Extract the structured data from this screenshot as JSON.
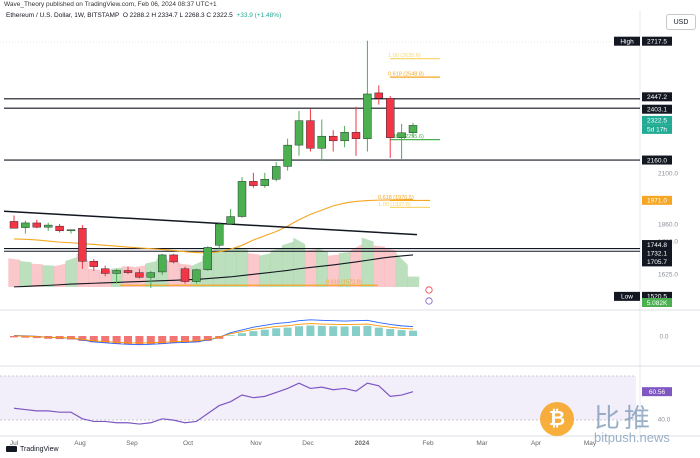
{
  "publisher_line": {
    "text": "Wave_Theory published on TradingView.com, Feb 06, 2024 08:37 UTC+1",
    "icon": "tradingview-icon"
  },
  "symbol_info": {
    "name": "Ethereum / U.S. Dollar, 1W, BITSTAMP",
    "ohlc_line": "O 2288.2  H 2334.7  L 2268.3  C 2322.5",
    "change": "+33.9 (+1.48%)"
  },
  "currency_button": "USD",
  "footer": {
    "logo_text": "TradingView"
  },
  "brand": {
    "cn": "比推",
    "site": "bitpush.news",
    "coin_icon": "bitcoin-icon"
  },
  "colors": {
    "up": "#22ab94",
    "down": "#f23645",
    "candle_up": "#4caf50",
    "ma_orange": "#f5a623",
    "fib_line": "#f5a623",
    "trend_line": "#131722",
    "rsi_line": "#7e57c2",
    "macd_line": "#2962ff"
  },
  "chart_data": [
    {
      "type": "candlestick",
      "x_labels": [
        "Jul",
        "Aug",
        "Sep",
        "Oct",
        "Nov",
        "Dec",
        "2024",
        "Feb",
        "Mar",
        "Apr",
        "May"
      ],
      "y_ticks": [
        1520.5,
        1625.0,
        1705.7,
        1780.0,
        1860.0,
        1971.0,
        2100.0,
        2160.0,
        2322.5,
        2403.1,
        2447.2,
        2717.5
      ],
      "price_labels": [
        {
          "text": "High",
          "value": "2717.5",
          "style": "dark"
        },
        {
          "text": "",
          "value": "2447.2",
          "style": "dark"
        },
        {
          "text": "",
          "value": "2403.1",
          "style": "dark"
        },
        {
          "text": "",
          "value": "2322.5",
          "style": "green"
        },
        {
          "text": "",
          "value": "5d 17h",
          "style": "green"
        },
        {
          "text": "",
          "value": "2160.0",
          "style": "dark"
        },
        {
          "text": "",
          "value": "1971.0",
          "style": "orange"
        },
        {
          "text": "",
          "value": "1744.8",
          "style": "dark"
        },
        {
          "text": "",
          "value": "1732.1",
          "style": "dark"
        },
        {
          "text": "",
          "value": "1705.7",
          "style": "dark"
        },
        {
          "text": "Low",
          "value": "1520.5",
          "style": "dark"
        }
      ],
      "axis_ticks": [
        {
          "value": "2100.0"
        },
        {
          "value": "1860.0"
        },
        {
          "value": "1780.0"
        },
        {
          "value": "1625.0"
        }
      ],
      "candles": [
        {
          "o": 1872,
          "h": 1900,
          "l": 1840,
          "c": 1840
        },
        {
          "o": 1843,
          "h": 1875,
          "l": 1815,
          "c": 1865
        },
        {
          "o": 1865,
          "h": 1880,
          "l": 1840,
          "c": 1845
        },
        {
          "o": 1845,
          "h": 1866,
          "l": 1828,
          "c": 1855
        },
        {
          "o": 1850,
          "h": 1860,
          "l": 1820,
          "c": 1828
        },
        {
          "o": 1828,
          "h": 1835,
          "l": 1815,
          "c": 1833
        },
        {
          "o": 1840,
          "h": 1855,
          "l": 1650,
          "c": 1685
        },
        {
          "o": 1685,
          "h": 1695,
          "l": 1640,
          "c": 1660
        },
        {
          "o": 1650,
          "h": 1665,
          "l": 1615,
          "c": 1628
        },
        {
          "o": 1628,
          "h": 1650,
          "l": 1580,
          "c": 1642
        },
        {
          "o": 1642,
          "h": 1660,
          "l": 1625,
          "c": 1632
        },
        {
          "o": 1632,
          "h": 1650,
          "l": 1605,
          "c": 1610
        },
        {
          "o": 1610,
          "h": 1640,
          "l": 1560,
          "c": 1632
        },
        {
          "o": 1635,
          "h": 1720,
          "l": 1620,
          "c": 1715
        },
        {
          "o": 1715,
          "h": 1720,
          "l": 1675,
          "c": 1682
        },
        {
          "o": 1650,
          "h": 1660,
          "l": 1580,
          "c": 1590
        },
        {
          "o": 1590,
          "h": 1650,
          "l": 1580,
          "c": 1645
        },
        {
          "o": 1645,
          "h": 1755,
          "l": 1640,
          "c": 1750
        },
        {
          "o": 1760,
          "h": 1870,
          "l": 1745,
          "c": 1860
        },
        {
          "o": 1860,
          "h": 1930,
          "l": 1855,
          "c": 1895
        },
        {
          "o": 1895,
          "h": 2080,
          "l": 1890,
          "c": 2060
        },
        {
          "o": 2060,
          "h": 2100,
          "l": 2030,
          "c": 2040
        },
        {
          "o": 2040,
          "h": 2100,
          "l": 2030,
          "c": 2070
        },
        {
          "o": 2070,
          "h": 2150,
          "l": 2060,
          "c": 2130
        },
        {
          "o": 2130,
          "h": 2260,
          "l": 2110,
          "c": 2230
        },
        {
          "o": 2230,
          "h": 2390,
          "l": 2180,
          "c": 2345
        },
        {
          "o": 2345,
          "h": 2400,
          "l": 2200,
          "c": 2215
        },
        {
          "o": 2215,
          "h": 2350,
          "l": 2155,
          "c": 2272
        },
        {
          "o": 2272,
          "h": 2300,
          "l": 2200,
          "c": 2250
        },
        {
          "o": 2250,
          "h": 2320,
          "l": 2220,
          "c": 2290
        },
        {
          "o": 2290,
          "h": 2410,
          "l": 2180,
          "c": 2260
        },
        {
          "o": 2260,
          "h": 2720,
          "l": 2200,
          "c": 2470
        },
        {
          "o": 2475,
          "h": 2510,
          "l": 2420,
          "c": 2450
        },
        {
          "o": 2450,
          "h": 2460,
          "l": 2170,
          "c": 2265
        },
        {
          "o": 2265,
          "h": 2330,
          "l": 2160,
          "c": 2288
        },
        {
          "o": 2288,
          "h": 2334.7,
          "l": 2268.3,
          "c": 2322.5
        }
      ],
      "horizontal_levels": [
        {
          "name": "resistance-2447",
          "value": 2447.2,
          "color": "#131722"
        },
        {
          "name": "resistance-2403",
          "value": 2403.1,
          "color": "#131722"
        },
        {
          "name": "support-2160",
          "value": 2160.0,
          "color": "#131722"
        },
        {
          "name": "support-1744",
          "value": 1744.8,
          "color": "#131722"
        },
        {
          "name": "support-1732",
          "value": 1732.1,
          "color": "#131722"
        }
      ],
      "fib_levels": [
        {
          "label": "1.00 (2635.6)",
          "value": 2635.6,
          "color": "#f7d774"
        },
        {
          "label": "0.618 (2548.8)",
          "value": 2548.8,
          "color": "#f5a623"
        },
        {
          "label": "0.382 (2255.6)",
          "value": 2255.6,
          "color": "#4caf50"
        },
        {
          "label": "0.618 (1970.5)",
          "value": 1970.5,
          "color": "#f5a623"
        },
        {
          "label": "1.00 (1937.8)",
          "value": 1937.8,
          "color": "#f7d774"
        },
        {
          "label": "0.618 (1572.8)",
          "value": 1572.8,
          "color": "#f5a623"
        }
      ],
      "moving_averages": [
        {
          "name": "ma-orange",
          "color": "#f5a623",
          "values": [
            1790,
            1788,
            1785,
            1780,
            1775,
            1772,
            1768,
            1764,
            1760,
            1756,
            1752,
            1748,
            1744,
            1740,
            1736,
            1730,
            1726,
            1724,
            1730,
            1742,
            1760,
            1785,
            1805,
            1825,
            1850,
            1880,
            1905,
            1925,
            1945,
            1958,
            1966,
            1970,
            1972,
            1973,
            1974,
            1975
          ]
        },
        {
          "name": "ma-dark",
          "color": "#131722",
          "values": [
            1565,
            1567,
            1570,
            1572,
            1575,
            1578,
            1580,
            1582,
            1584,
            1586,
            1588,
            1590,
            1592,
            1594,
            1596,
            1598,
            1600,
            1604,
            1608,
            1612,
            1618,
            1624,
            1630,
            1636,
            1642,
            1650,
            1656,
            1662,
            1668,
            1675,
            1682,
            1690,
            1698,
            1705,
            1710,
            1715
          ]
        }
      ],
      "trend_line": {
        "from": [
          0,
          1920
        ],
        "to": [
          35,
          1810
        ]
      }
    },
    {
      "type": "area",
      "name": "volume",
      "value_label": "5.082K",
      "values": [
        0.55,
        0.5,
        0.45,
        0.42,
        0.4,
        0.5,
        0.65,
        0.35,
        0.3,
        0.35,
        0.4,
        0.38,
        0.45,
        0.55,
        0.5,
        0.45,
        0.4,
        0.6,
        0.75,
        0.7,
        0.78,
        0.65,
        0.6,
        0.7,
        0.8,
        0.95,
        0.7,
        0.75,
        0.6,
        0.65,
        0.7,
        0.95,
        0.8,
        0.75,
        0.65,
        0.2
      ]
    },
    {
      "type": "bar",
      "name": "macd",
      "zero_label": "0.0",
      "values": [
        -0.1,
        -0.12,
        -0.15,
        -0.2,
        -0.22,
        -0.25,
        -0.35,
        -0.45,
        -0.5,
        -0.55,
        -0.58,
        -0.6,
        -0.58,
        -0.55,
        -0.5,
        -0.48,
        -0.45,
        -0.35,
        -0.2,
        0.05,
        0.2,
        0.35,
        0.45,
        0.55,
        0.6,
        0.7,
        0.75,
        0.72,
        0.7,
        0.68,
        0.7,
        0.72,
        0.6,
        0.5,
        0.42,
        0.38
      ]
    },
    {
      "type": "line",
      "name": "rsi",
      "value_label": "60.56",
      "y_ticks": [
        40.0
      ],
      "values": [
        48,
        47,
        46,
        46,
        45,
        45,
        40,
        38,
        38,
        37,
        37,
        36,
        37,
        40,
        39,
        37,
        38,
        44,
        50,
        53,
        58,
        56,
        57,
        60,
        63,
        67,
        63,
        64,
        62,
        63,
        61,
        67,
        65,
        57,
        58,
        60.56
      ]
    }
  ]
}
